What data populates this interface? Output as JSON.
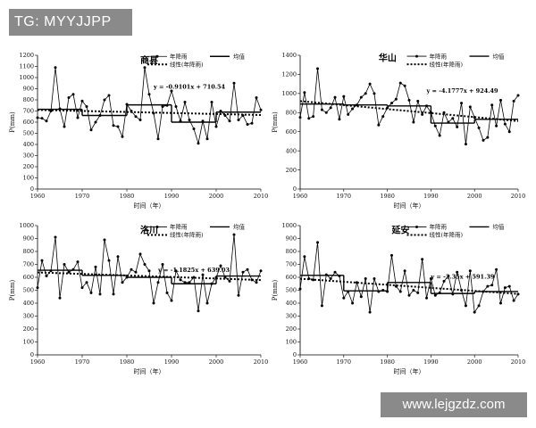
{
  "watermarks": {
    "top_left": "TG: MYYJJPP",
    "bottom_right": "www.lejgzdz.com"
  },
  "chart_data": [
    {
      "type": "line",
      "title": "商县",
      "xlabel": "时间（年）",
      "ylabel": "P(mm)",
      "xlim": [
        1960,
        2010
      ],
      "ylim": [
        0,
        1200
      ],
      "yticks": [
        0,
        100,
        200,
        300,
        400,
        500,
        600,
        700,
        800,
        900,
        1000,
        1100,
        1200
      ],
      "xticks": [
        1960,
        1970,
        1980,
        1990,
        2000,
        2010
      ],
      "legend": {
        "series": "年降雨",
        "mean": "均值",
        "trend": "线性(年降雨)"
      },
      "equation": "y = -0.9101x + 710.54",
      "trend_line": {
        "slope": -0.9101,
        "intercept": 710.54
      },
      "years": [
        1960,
        1961,
        1962,
        1963,
        1964,
        1965,
        1966,
        1967,
        1968,
        1969,
        1970,
        1971,
        1972,
        1973,
        1974,
        1975,
        1976,
        1977,
        1978,
        1979,
        1980,
        1981,
        1982,
        1983,
        1984,
        1985,
        1986,
        1987,
        1988,
        1989,
        1990,
        1991,
        1992,
        1993,
        1994,
        1995,
        1996,
        1997,
        1998,
        1999,
        2000,
        2001,
        2002,
        2003,
        2004,
        2005,
        2006,
        2007,
        2008,
        2009,
        2010
      ],
      "values": [
        640,
        635,
        610,
        700,
        1090,
        720,
        560,
        820,
        850,
        640,
        790,
        740,
        530,
        600,
        660,
        800,
        840,
        570,
        560,
        470,
        760,
        700,
        650,
        620,
        1090,
        850,
        680,
        450,
        740,
        750,
        880,
        740,
        610,
        780,
        620,
        540,
        410,
        610,
        450,
        780,
        560,
        700,
        660,
        610,
        950,
        620,
        660,
        580,
        590,
        820,
        710
      ],
      "mean_segments": [
        {
          "x1": 1960,
          "x2": 1970,
          "y": 715
        },
        {
          "x1": 1970,
          "x2": 1980,
          "y": 660
        },
        {
          "x1": 1980,
          "x2": 1990,
          "y": 755
        },
        {
          "x1": 1990,
          "x2": 2000,
          "y": 600
        },
        {
          "x1": 2000,
          "x2": 2010,
          "y": 690
        }
      ]
    },
    {
      "type": "line",
      "title": "华山",
      "xlabel": "时间（年）",
      "ylabel": "P(mm)",
      "xlim": [
        1960,
        2010
      ],
      "ylim": [
        0,
        1400
      ],
      "yticks": [
        0,
        200,
        400,
        600,
        800,
        1000,
        1200,
        1400
      ],
      "xticks": [
        1960,
        1970,
        1980,
        1990,
        2000,
        2010
      ],
      "legend": {
        "series": "年降雨",
        "mean": "均值",
        "trend": "线性(年降雨)"
      },
      "equation": "y = -4.1777x + 924.49",
      "trend_line": {
        "slope": -4.1777,
        "intercept": 924.49
      },
      "years": [
        1960,
        1961,
        1962,
        1963,
        1964,
        1965,
        1966,
        1967,
        1968,
        1969,
        1970,
        1971,
        1972,
        1973,
        1974,
        1975,
        1976,
        1977,
        1978,
        1979,
        1980,
        1981,
        1982,
        1983,
        1984,
        1985,
        1986,
        1987,
        1988,
        1989,
        1990,
        1991,
        1992,
        1993,
        1994,
        1995,
        1996,
        1997,
        1998,
        1999,
        2000,
        2001,
        2002,
        2003,
        2004,
        2005,
        2006,
        2007,
        2008,
        2009,
        2010
      ],
      "values": [
        750,
        1010,
        740,
        760,
        1260,
        830,
        800,
        850,
        960,
        730,
        970,
        780,
        840,
        880,
        960,
        1000,
        1100,
        1000,
        670,
        760,
        850,
        900,
        940,
        1110,
        1080,
        930,
        700,
        920,
        780,
        870,
        800,
        660,
        560,
        800,
        700,
        740,
        650,
        900,
        470,
        860,
        750,
        640,
        510,
        540,
        880,
        660,
        930,
        680,
        600,
        920,
        980
      ],
      "mean_segments": [
        {
          "x1": 1960,
          "x2": 1970,
          "y": 890
        },
        {
          "x1": 1970,
          "x2": 1980,
          "y": 880
        },
        {
          "x1": 1980,
          "x2": 1990,
          "y": 870
        },
        {
          "x1": 1990,
          "x2": 2000,
          "y": 690
        },
        {
          "x1": 2000,
          "x2": 2010,
          "y": 730
        }
      ]
    },
    {
      "type": "line",
      "title": "洛川",
      "xlabel": "时间（年）",
      "ylabel": "P(mm)",
      "xlim": [
        1960,
        2010
      ],
      "ylim": [
        0,
        1000
      ],
      "yticks": [
        0,
        100,
        200,
        300,
        400,
        500,
        600,
        700,
        800,
        900,
        1000
      ],
      "xticks": [
        1960,
        1970,
        1980,
        1990,
        2000,
        2010
      ],
      "legend": {
        "series": "年降雨",
        "mean": "均值",
        "trend": "线性(年降雨)"
      },
      "equation": "y = -1.1825x + 639.03",
      "trend_line": {
        "slope": -1.1825,
        "intercept": 639.03
      },
      "years": [
        1960,
        1961,
        1962,
        1963,
        1964,
        1965,
        1966,
        1967,
        1968,
        1969,
        1970,
        1971,
        1972,
        1973,
        1974,
        1975,
        1976,
        1977,
        1978,
        1979,
        1980,
        1981,
        1982,
        1983,
        1984,
        1985,
        1986,
        1987,
        1988,
        1989,
        1990,
        1991,
        1992,
        1993,
        1994,
        1995,
        1996,
        1997,
        1998,
        1999,
        2000,
        2001,
        2002,
        2003,
        2004,
        2005,
        2006,
        2007,
        2008,
        2009,
        2010
      ],
      "values": [
        520,
        730,
        610,
        650,
        910,
        440,
        700,
        640,
        660,
        720,
        520,
        560,
        480,
        680,
        470,
        890,
        730,
        470,
        760,
        560,
        600,
        660,
        640,
        780,
        700,
        650,
        400,
        560,
        700,
        480,
        420,
        650,
        580,
        560,
        560,
        600,
        340,
        620,
        400,
        550,
        600,
        690,
        600,
        570,
        930,
        460,
        640,
        660,
        580,
        560,
        650
      ],
      "mean_segments": [
        {
          "x1": 1960,
          "x2": 1970,
          "y": 655
        },
        {
          "x1": 1970,
          "x2": 1980,
          "y": 615
        },
        {
          "x1": 1980,
          "x2": 1990,
          "y": 600
        },
        {
          "x1": 1990,
          "x2": 2000,
          "y": 550
        },
        {
          "x1": 2000,
          "x2": 2010,
          "y": 610
        }
      ]
    },
    {
      "type": "line",
      "title": "延安",
      "xlabel": "时间（年）",
      "ylabel": "P(mm)",
      "xlim": [
        1960,
        2010
      ],
      "ylim": [
        0,
        1000
      ],
      "yticks": [
        0,
        100,
        200,
        300,
        400,
        500,
        600,
        700,
        800,
        900,
        1000
      ],
      "xticks": [
        1960,
        1970,
        1980,
        1990,
        2000,
        2010
      ],
      "legend": {
        "series": "年降雨",
        "mean": "均值",
        "trend": "线性(年降雨)"
      },
      "equation": "y = -2.35x + 591.39",
      "trend_line": {
        "slope": -2.35,
        "intercept": 591.39
      },
      "years": [
        1960,
        1961,
        1962,
        1963,
        1964,
        1965,
        1966,
        1967,
        1968,
        1969,
        1970,
        1971,
        1972,
        1973,
        1974,
        1975,
        1976,
        1977,
        1978,
        1979,
        1980,
        1981,
        1982,
        1983,
        1984,
        1985,
        1986,
        1987,
        1988,
        1989,
        1990,
        1991,
        1992,
        1993,
        1994,
        1995,
        1996,
        1997,
        1998,
        1999,
        2000,
        2001,
        2002,
        2003,
        2004,
        2005,
        2006,
        2007,
        2008,
        2009,
        2010
      ],
      "values": [
        510,
        760,
        590,
        580,
        870,
        380,
        620,
        590,
        640,
        610,
        440,
        490,
        400,
        560,
        450,
        590,
        330,
        590,
        490,
        500,
        490,
        770,
        530,
        490,
        650,
        460,
        500,
        480,
        740,
        440,
        590,
        460,
        480,
        570,
        610,
        470,
        640,
        500,
        380,
        650,
        330,
        380,
        490,
        530,
        540,
        660,
        400,
        520,
        530,
        420,
        470
      ],
      "mean_segments": [
        {
          "x1": 1960,
          "x2": 1970,
          "y": 615
        },
        {
          "x1": 1970,
          "x2": 1980,
          "y": 495
        },
        {
          "x1": 1980,
          "x2": 1990,
          "y": 560
        },
        {
          "x1": 1990,
          "x2": 2000,
          "y": 475
        },
        {
          "x1": 2000,
          "x2": 2010,
          "y": 490
        }
      ]
    }
  ]
}
